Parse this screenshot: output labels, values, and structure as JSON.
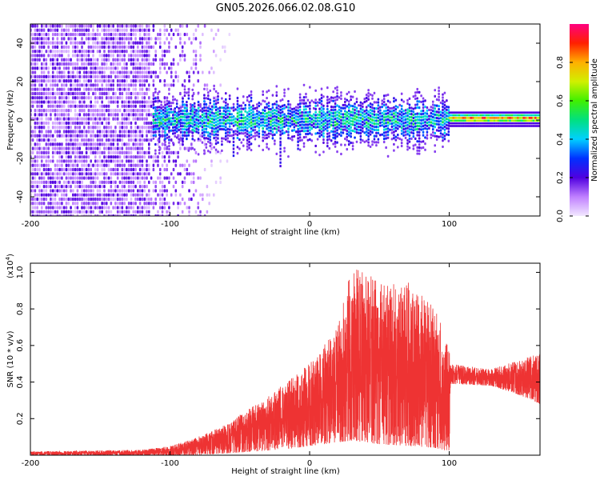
{
  "title": "GN05.2026.066.02.08.G10",
  "chart_data": [
    {
      "type": "heatmap",
      "name": "spectrogram",
      "xlabel": "Height of straight line (km)",
      "ylabel": "Frequency (Hz)",
      "xlim": [
        -200,
        165
      ],
      "ylim": [
        -50,
        50
      ],
      "xticks": [
        -200,
        -100,
        0,
        100
      ],
      "yticks": [
        -40,
        -20,
        0,
        20,
        40
      ],
      "colorbar": {
        "label": "Normalized spectral amplitude",
        "range": [
          0,
          1
        ],
        "ticks": [
          0.0,
          0.2,
          0.4,
          0.6,
          0.8
        ],
        "tick_labels": [
          "0.0",
          "0.2",
          "0.4",
          "0.6",
          "0.8"
        ]
      },
      "features": [
        {
          "region": "noise",
          "x_range": [
            -200,
            -85
          ],
          "amplitude": 0.12
        },
        {
          "region": "signal-band",
          "x_range": [
            -112,
            100
          ],
          "center_hz": 0,
          "half_width_hz": 8,
          "peak_amplitude": 0.5
        },
        {
          "region": "strong-line",
          "x_range": [
            100,
            165
          ],
          "center_hz": 1,
          "peak_amplitude": 0.95
        }
      ]
    },
    {
      "type": "line",
      "name": "snr",
      "xlabel": "Height of straight line (km)",
      "ylabel": "SNR (10 * v/v)",
      "yscale_label": "(x10",
      "yscale_exp": "4",
      "yscale_close": ")",
      "xlim": [
        -200,
        165
      ],
      "ylim": [
        0,
        1.05
      ],
      "xticks": [
        -200,
        -100,
        0,
        100
      ],
      "yticks": [
        0.2,
        0.4,
        0.6,
        0.8,
        1.0
      ],
      "ytick_labels": [
        "0.2",
        "0.4",
        "0.6",
        "0.8",
        "1.0"
      ],
      "color": "#ee3333",
      "envelope": [
        {
          "x": -200,
          "min": 0.0,
          "max": 0.02
        },
        {
          "x": -120,
          "min": 0.0,
          "max": 0.03
        },
        {
          "x": -100,
          "min": 0.0,
          "max": 0.05
        },
        {
          "x": -80,
          "min": 0.0,
          "max": 0.1
        },
        {
          "x": -60,
          "min": 0.01,
          "max": 0.17
        },
        {
          "x": -40,
          "min": 0.02,
          "max": 0.27
        },
        {
          "x": -20,
          "min": 0.03,
          "max": 0.38
        },
        {
          "x": 0,
          "min": 0.05,
          "max": 0.5
        },
        {
          "x": 20,
          "min": 0.07,
          "max": 0.7
        },
        {
          "x": 30,
          "min": 0.08,
          "max": 1.05
        },
        {
          "x": 50,
          "min": 0.06,
          "max": 0.95
        },
        {
          "x": 70,
          "min": 0.05,
          "max": 0.95
        },
        {
          "x": 90,
          "min": 0.04,
          "max": 0.8
        },
        {
          "x": 100,
          "min": 0.02,
          "max": 0.6
        },
        {
          "x": 101,
          "min": 0.39,
          "max": 0.5
        },
        {
          "x": 130,
          "min": 0.38,
          "max": 0.47
        },
        {
          "x": 150,
          "min": 0.33,
          "max": 0.52
        },
        {
          "x": 165,
          "min": 0.28,
          "max": 0.57
        }
      ]
    }
  ]
}
